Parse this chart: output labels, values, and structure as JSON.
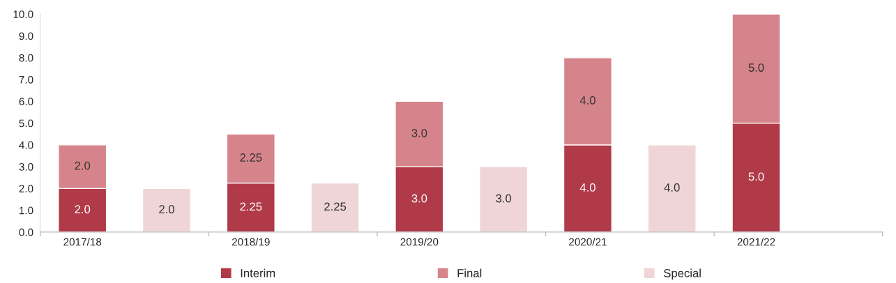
{
  "chart_data": {
    "type": "bar",
    "stacked": true,
    "categories": [
      "2017/18",
      null,
      "2018/19",
      null,
      "2019/20",
      null,
      "2020/21",
      null,
      "2021/22",
      null
    ],
    "series": [
      {
        "name": "Interim",
        "color": "#b03a48",
        "values": [
          2.0,
          null,
          2.25,
          null,
          3.0,
          null,
          4.0,
          null,
          5.0,
          null
        ],
        "value_labels": [
          "2.0",
          null,
          "2.25",
          null,
          "3.0",
          null,
          "4.0",
          null,
          "5.0",
          null
        ]
      },
      {
        "name": "Final",
        "color": "#d6848b",
        "values": [
          2.0,
          null,
          2.25,
          null,
          3.0,
          null,
          4.0,
          null,
          5.0,
          null
        ],
        "value_labels": [
          "2.0",
          null,
          "2.25",
          null,
          "3.0",
          null,
          "4.0",
          null,
          "5.0",
          null
        ]
      },
      {
        "name": "Special",
        "color": "#f0d5d7",
        "values": [
          null,
          2.0,
          null,
          2.25,
          null,
          3.0,
          null,
          4.0,
          null,
          null
        ],
        "value_labels": [
          null,
          "2.0",
          null,
          "2.25",
          null,
          "3.0",
          null,
          "4.0",
          null,
          null
        ]
      }
    ],
    "ylim": [
      0,
      10
    ],
    "yticks": [
      {
        "value": 0,
        "label": "0.0"
      },
      {
        "value": 1,
        "label": "1.0"
      },
      {
        "value": 2,
        "label": "2.0"
      },
      {
        "value": 3,
        "label": "3.0"
      },
      {
        "value": 4,
        "label": "4.0"
      },
      {
        "value": 5,
        "label": "5.0"
      },
      {
        "value": 6,
        "label": "6.0"
      },
      {
        "value": 7,
        "label": "7.0"
      },
      {
        "value": 8,
        "label": "8.0"
      },
      {
        "value": 9,
        "label": "9.0"
      },
      {
        "value": 10,
        "label": "10.0"
      }
    ],
    "grid": false,
    "legend": "bottom"
  }
}
